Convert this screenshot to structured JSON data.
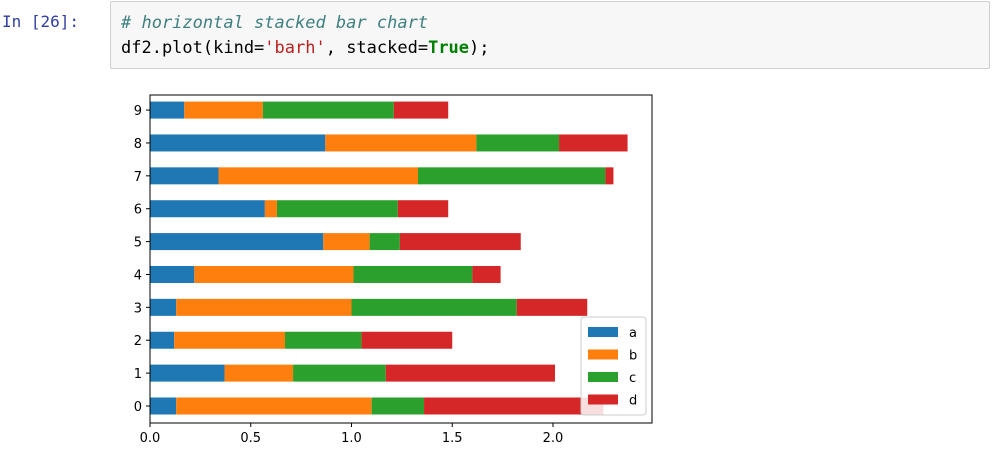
{
  "notebook": {
    "prompt": "In [26]:",
    "code_comment": "# horizontal stacked bar chart",
    "code_prefix": "df2.plot(kind=",
    "code_string": "'barh'",
    "code_middle": ", stacked=",
    "code_keyword": "True",
    "code_suffix": ");"
  },
  "chart_data": {
    "type": "bar",
    "orientation": "horizontal",
    "stacked": true,
    "categories": [
      "0",
      "1",
      "2",
      "3",
      "4",
      "5",
      "6",
      "7",
      "8",
      "9"
    ],
    "series": [
      {
        "name": "a",
        "color": "#1f77b4",
        "values": [
          0.13,
          0.37,
          0.12,
          0.13,
          0.22,
          0.86,
          0.57,
          0.34,
          0.87,
          0.17
        ]
      },
      {
        "name": "b",
        "color": "#ff7f0e",
        "values": [
          0.97,
          0.34,
          0.55,
          0.87,
          0.79,
          0.23,
          0.06,
          0.99,
          0.75,
          0.39
        ]
      },
      {
        "name": "c",
        "color": "#2ca02c",
        "values": [
          0.26,
          0.46,
          0.38,
          0.82,
          0.59,
          0.15,
          0.6,
          0.93,
          0.41,
          0.65
        ]
      },
      {
        "name": "d",
        "color": "#d62728",
        "values": [
          0.89,
          0.84,
          0.45,
          0.35,
          0.14,
          0.6,
          0.25,
          0.04,
          0.34,
          0.27
        ]
      }
    ],
    "xlim": [
      0,
      2.5
    ],
    "xticks": [
      "0.0",
      "0.5",
      "1.0",
      "1.5",
      "2.0"
    ],
    "grid": false,
    "legend_placement": "lower-right"
  }
}
